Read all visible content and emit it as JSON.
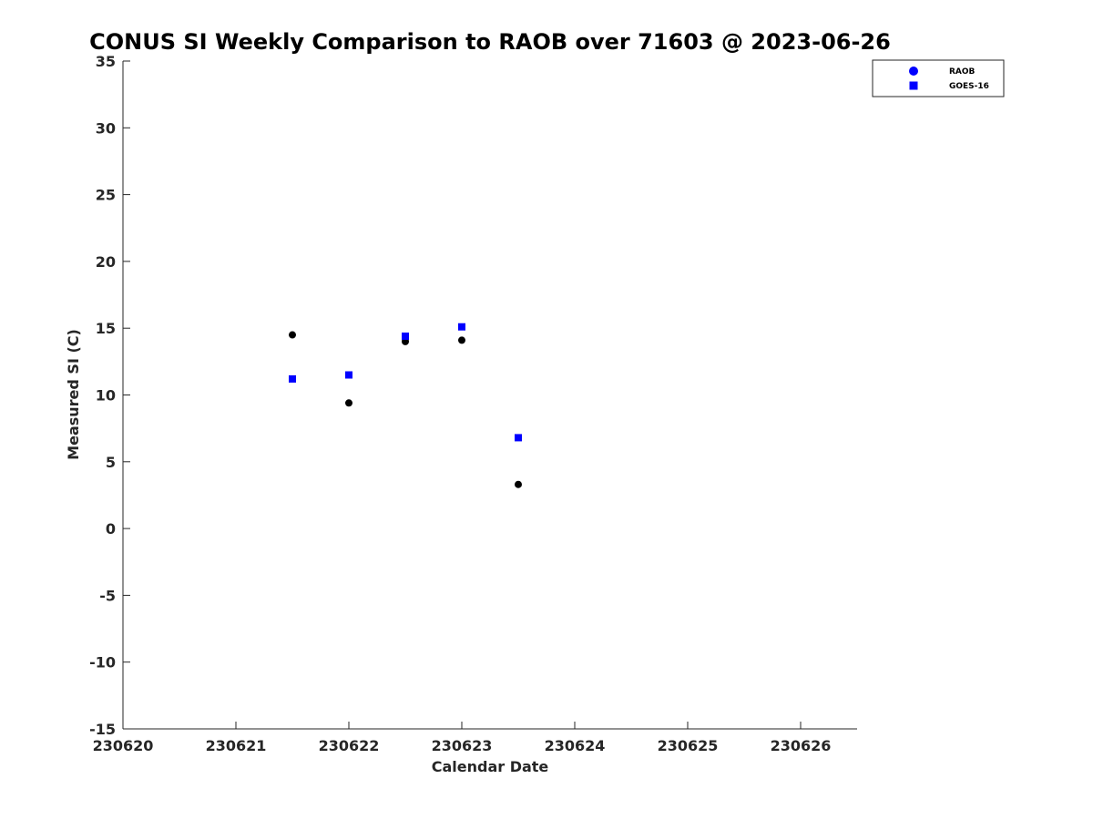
{
  "chart_data": {
    "type": "scatter",
    "title": "CONUS SI Weekly Comparison to RAOB over 71603 @ 2023-06-26",
    "xlabel": "Calendar Date",
    "ylabel": "Measured SI (C)",
    "xlim": [
      230620,
      230626.5
    ],
    "ylim": [
      -15,
      35
    ],
    "xticks": [
      230620,
      230621,
      230622,
      230623,
      230624,
      230625,
      230626
    ],
    "xtick_labels": [
      "230620",
      "230621",
      "230622",
      "230623",
      "230624",
      "230625",
      "230626"
    ],
    "yticks": [
      -15,
      -10,
      -5,
      0,
      5,
      10,
      15,
      20,
      25,
      30,
      35
    ],
    "ytick_labels": [
      "-15",
      "-10",
      "-5",
      "0",
      "5",
      "10",
      "15",
      "20",
      "25",
      "30",
      "35"
    ],
    "grid": false,
    "legend_position": "top-right-outside",
    "series": [
      {
        "name": "RAOB",
        "marker": "circle",
        "legend_color": "#0000ff",
        "color": "#000000",
        "x": [
          230621.5,
          230622.0,
          230622.5,
          230623.0,
          230623.5
        ],
        "y": [
          14.5,
          9.4,
          14.0,
          14.1,
          3.3
        ]
      },
      {
        "name": "GOES-16",
        "marker": "square",
        "color": "#0000ff",
        "legend_color": "#0000ff",
        "x": [
          230621.5,
          230622.0,
          230622.5,
          230623.0,
          230623.5
        ],
        "y": [
          11.2,
          11.5,
          14.4,
          15.1,
          6.8
        ]
      }
    ]
  }
}
